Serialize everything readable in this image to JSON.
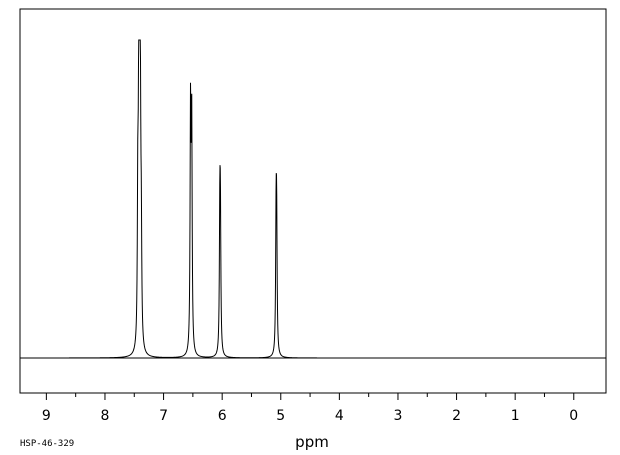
{
  "chart_data": {
    "type": "line",
    "xlabel": "ppm",
    "xlim": [
      9.45,
      -0.55
    ],
    "ylim": [
      -0.12,
      1.0
    ],
    "x_reversed": true,
    "x_ticks": [
      9,
      8,
      7,
      6,
      5,
      4,
      3,
      2,
      1,
      0
    ],
    "x_tick_labels": [
      "9",
      "8",
      "7",
      "6",
      "5",
      "4",
      "3",
      "2",
      "1",
      "0"
    ],
    "peaks": [
      {
        "ppm": 7.44,
        "height": 0.44
      },
      {
        "ppm": 7.425,
        "height": 0.57
      },
      {
        "ppm": 7.41,
        "height": 1.0
      },
      {
        "ppm": 7.395,
        "height": 0.57
      },
      {
        "ppm": 7.38,
        "height": 0.3
      },
      {
        "ppm": 6.54,
        "height": 0.75
      },
      {
        "ppm": 6.52,
        "height": 0.72
      },
      {
        "ppm": 6.04,
        "height": 0.41
      },
      {
        "ppm": 6.03,
        "height": 0.38
      },
      {
        "ppm": 5.08,
        "height": 0.39
      },
      {
        "ppm": 5.07,
        "height": 0.37
      }
    ],
    "grid": false,
    "legend": "none"
  },
  "footer": {
    "id_label": "HSP-46-329"
  },
  "colors": {
    "line": "#000000",
    "background": "#ffffff"
  }
}
